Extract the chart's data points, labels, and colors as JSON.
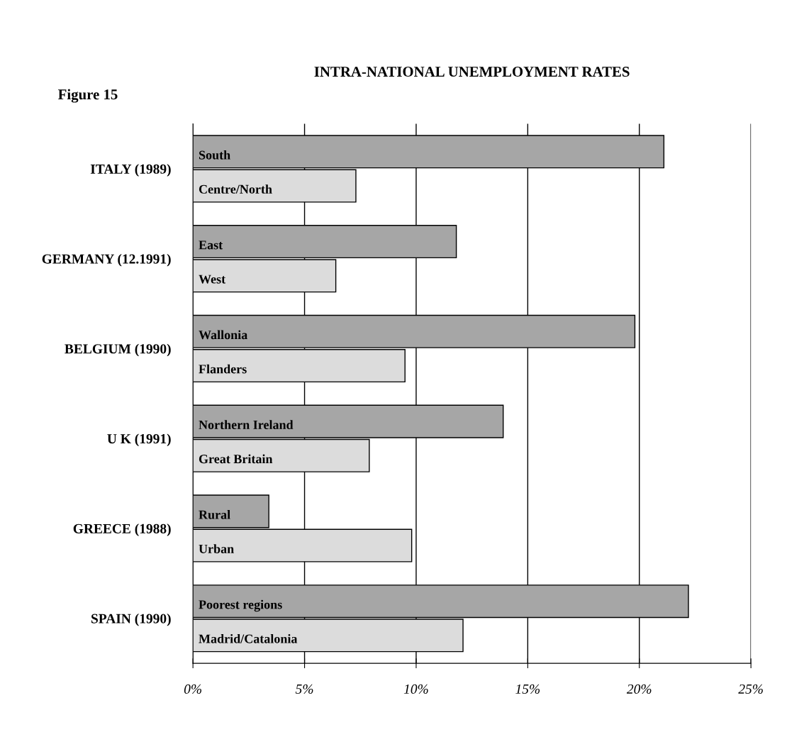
{
  "chart_data": {
    "type": "bar",
    "orientation": "horizontal",
    "title": "INTRA-NATIONAL UNEMPLOYMENT RATES",
    "categories": [
      "ITALY (1989)",
      "GERMANY (12.1991)",
      "BELGIUM (1990)",
      "U K (1991)",
      "GREECE (1988)",
      "SPAIN (1990)"
    ],
    "series": [
      {
        "color": "#a6a6a6",
        "values": [
          21.1,
          11.8,
          19.8,
          13.9,
          3.4,
          22.2
        ]
      },
      {
        "color": "#dcdcdc",
        "values": [
          7.3,
          6.4,
          9.5,
          7.9,
          9.8,
          12.1
        ]
      }
    ],
    "xlim": [
      0,
      25
    ],
    "xticks": [
      {
        "value": 0,
        "label": "0%"
      },
      {
        "value": 5,
        "label": "5%"
      },
      {
        "value": 10,
        "label": "10%"
      },
      {
        "value": 15,
        "label": "15%"
      },
      {
        "value": 20,
        "label": "20%"
      },
      {
        "value": 25,
        "label": "25%"
      }
    ],
    "grid": "x",
    "annotations": [
      "Figure 15",
      "South",
      "Centre/North",
      "East",
      "West",
      "Wallonia",
      "Flanders",
      "Northern Ireland",
      "Great Britain",
      "Rural",
      "Urban",
      "Poorest regions",
      "Madrid/Catalonia"
    ]
  }
}
